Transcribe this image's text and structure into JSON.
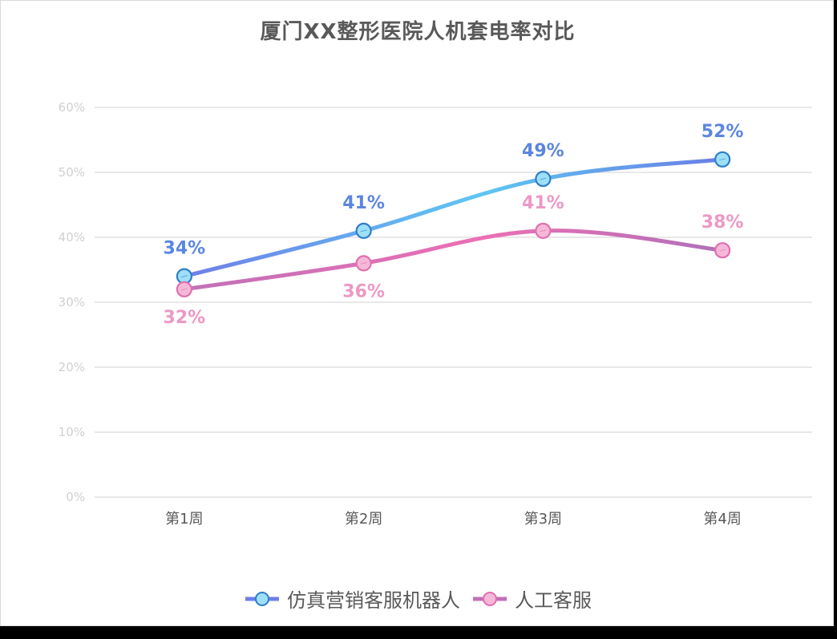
{
  "chart_data": {
    "type": "line",
    "title": "厦门XX整形医院人机套电率对比",
    "categories": [
      "第1周",
      "第2周",
      "第3周",
      "第4周"
    ],
    "yticks": [
      "0%",
      "10%",
      "20%",
      "30%",
      "40%",
      "50%",
      "60%"
    ],
    "ylim": [
      0,
      60
    ],
    "grid": true,
    "legend_position": "bottom",
    "series": [
      {
        "name": "仿真营销客服机器人",
        "values": [
          34,
          41,
          49,
          52
        ],
        "labels": [
          "34%",
          "41%",
          "49%",
          "52%"
        ],
        "color_start": "#6f7fe6",
        "color_mid": "#5ec6f2",
        "color_end": "#6a7ee4",
        "marker_fill": "#9ee0f8",
        "marker_stroke": "#2f7ec8",
        "label_color": "#5b86e0"
      },
      {
        "name": "人工客服",
        "values": [
          32,
          36,
          41,
          38
        ],
        "labels": [
          "32%",
          "36%",
          "41%",
          "38%"
        ],
        "color_start": "#c070b8",
        "color_mid": "#ec6fb4",
        "color_end": "#b070b8",
        "marker_fill": "#f6b8d8",
        "marker_stroke": "#e070b0",
        "label_color": "#ec98c4"
      }
    ]
  }
}
